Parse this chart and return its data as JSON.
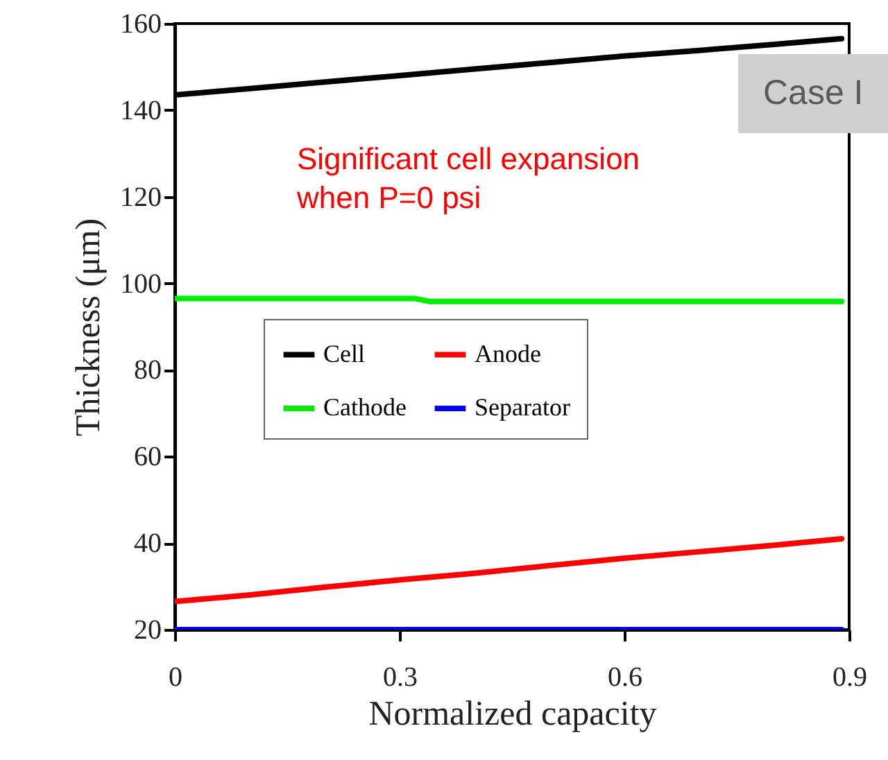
{
  "chart_data": {
    "type": "line",
    "xlabel": "Normalized capacity",
    "ylabel": "Thickness (μm)",
    "x": [
      0,
      0.1,
      0.2,
      0.3,
      0.4,
      0.5,
      0.6,
      0.7,
      0.8,
      0.89
    ],
    "series": [
      {
        "name": "Cell",
        "color": "#000000",
        "values": [
          143.5,
          145,
          146.5,
          148,
          149.5,
          151,
          152.5,
          153.8,
          155.2,
          156.5
        ]
      },
      {
        "name": "Anode",
        "color": "#ff0000",
        "values": [
          26.5,
          28,
          29.8,
          31.5,
          33,
          34.8,
          36.5,
          38,
          39.5,
          41
        ]
      },
      {
        "name": "Cathode",
        "color": "#00ee00",
        "x": [
          0,
          0.32,
          0.34,
          0.89
        ],
        "values": [
          96.5,
          96.5,
          95.8,
          95.8
        ]
      },
      {
        "name": "Separator",
        "color": "#0000ff",
        "x": [
          0,
          0.89
        ],
        "values": [
          20,
          20
        ]
      }
    ],
    "xlim": [
      0,
      0.9
    ],
    "xticks": [
      0,
      0.3,
      0.6,
      0.9
    ],
    "ylim": [
      20,
      160
    ],
    "yticks": [
      20,
      40,
      60,
      80,
      100,
      120,
      140,
      160
    ],
    "grid": false,
    "legend": "center",
    "line_style": "solid",
    "annotations": [
      "Significant cell expansion\nwhen P=0 psi",
      "Case I"
    ]
  }
}
